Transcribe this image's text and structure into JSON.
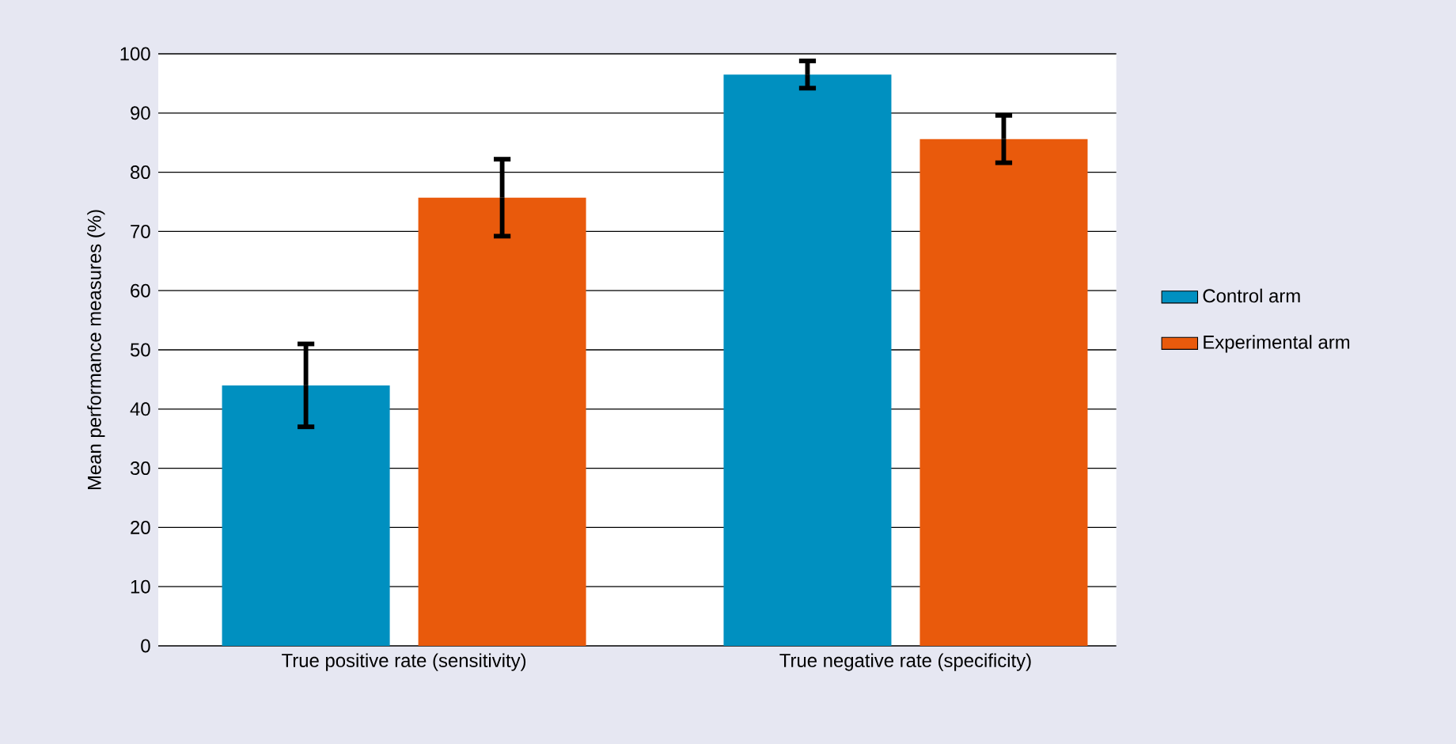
{
  "chart_data": {
    "type": "bar",
    "ylabel": "Mean performance measures (%)",
    "categories": [
      "True positive rate (sensitivity)",
      "True negative rate (specificity)"
    ],
    "series": [
      {
        "name": "Control arm",
        "color": "#0090c0",
        "values": [
          44,
          96.5
        ],
        "errors": [
          7,
          2.3
        ]
      },
      {
        "name": "Experimental arm",
        "color": "#e95a0c",
        "values": [
          75.7,
          85.6
        ],
        "errors": [
          6.5,
          4
        ]
      }
    ],
    "ylim": [
      0,
      100
    ],
    "yticks": [
      0,
      10,
      20,
      30,
      40,
      50,
      60,
      70,
      80,
      90,
      100
    ],
    "grid": "y",
    "legend": "right"
  }
}
